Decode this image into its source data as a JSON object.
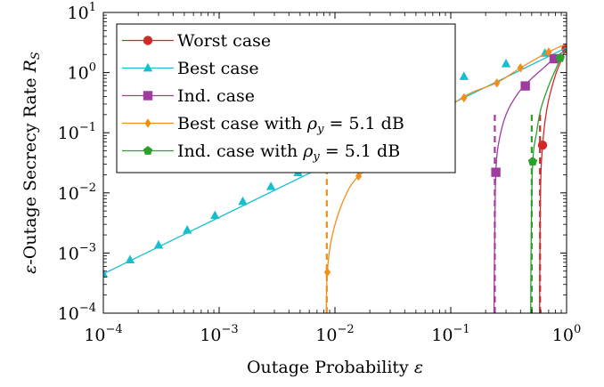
{
  "chart_data": {
    "type": "line",
    "x_scale": "log",
    "y_scale": "log",
    "xlim": [
      0.0001,
      1
    ],
    "ylim": [
      0.0001,
      10
    ],
    "xlabel": "Outage Probability ε",
    "ylabel": "ε-Outage Secrecy Rate R_S",
    "grid": false,
    "legend_position": "top-left",
    "x_ticks": [
      {
        "value": 0.0001,
        "base": "10",
        "exp": "−4"
      },
      {
        "value": 0.001,
        "base": "10",
        "exp": "−3"
      },
      {
        "value": 0.01,
        "base": "10",
        "exp": "−2"
      },
      {
        "value": 0.1,
        "base": "10",
        "exp": "−1"
      },
      {
        "value": 1,
        "base": "10",
        "exp": "0"
      }
    ],
    "y_ticks": [
      {
        "value": 0.0001,
        "base": "10",
        "exp": "−4"
      },
      {
        "value": 0.001,
        "base": "10",
        "exp": "−3"
      },
      {
        "value": 0.01,
        "base": "10",
        "exp": "−2"
      },
      {
        "value": 0.1,
        "base": "10",
        "exp": "−1"
      },
      {
        "value": 1,
        "base": "10",
        "exp": "0"
      },
      {
        "value": 10,
        "base": "10",
        "exp": "1"
      }
    ],
    "series": [
      {
        "name": "Worst case",
        "color": "#d62728",
        "marker": "circle",
        "line": [
          [
            0.585,
            0.0001
          ],
          [
            0.59,
            0.002
          ],
          [
            0.6,
            0.02
          ],
          [
            0.62,
            0.06
          ],
          [
            0.65,
            0.15
          ],
          [
            0.7,
            0.35
          ],
          [
            0.8,
            0.9
          ],
          [
            0.9,
            1.6
          ],
          [
            1.0,
            2.6
          ]
        ],
        "markers": [
          [
            0.62,
            0.062
          ],
          [
            0.99,
            2.5
          ]
        ],
        "asymptote": 0.59
      },
      {
        "name": "Best case",
        "color": "#17becf",
        "marker": "triangle",
        "line": [
          [
            0.0001,
            0.00045
          ],
          [
            1.0,
            2.6
          ]
        ],
        "markers": [
          [
            0.0001,
            0.00045
          ],
          [
            0.00017,
            0.00077
          ],
          [
            0.0003,
            0.00135
          ],
          [
            0.00053,
            0.0024
          ],
          [
            0.00092,
            0.0042
          ],
          [
            0.0016,
            0.0072
          ],
          [
            0.0028,
            0.0127
          ],
          [
            0.0048,
            0.0217
          ],
          [
            0.13,
            0.86
          ],
          [
            0.3,
            1.4
          ],
          [
            0.65,
            2.1
          ]
        ]
      },
      {
        "name": "Ind. case",
        "color": "#a03ba0",
        "marker": "square",
        "line": [
          [
            0.236,
            0.0001
          ],
          [
            0.24,
            0.0025
          ],
          [
            0.245,
            0.022
          ],
          [
            0.26,
            0.07
          ],
          [
            0.3,
            0.2
          ],
          [
            0.38,
            0.45
          ],
          [
            0.5,
            0.8
          ],
          [
            0.65,
            1.25
          ],
          [
            0.8,
            1.8
          ],
          [
            1.0,
            2.4
          ]
        ],
        "markers": [
          [
            0.245,
            0.022
          ],
          [
            0.44,
            0.6
          ],
          [
            0.78,
            1.7
          ]
        ],
        "asymptote": 0.24
      },
      {
        "name": "Best case with ρ_y = 5.1 dB",
        "color": "#f28e1c",
        "marker": "diamond",
        "line": [
          [
            0.0084,
            0.0001
          ],
          [
            0.0086,
            0.0005
          ],
          [
            0.0095,
            0.002
          ],
          [
            0.012,
            0.008
          ],
          [
            0.016,
            0.019
          ],
          [
            0.03,
            0.05
          ],
          [
            0.06,
            0.13
          ],
          [
            0.13,
            0.4
          ],
          [
            0.25,
            0.68
          ],
          [
            0.4,
            1.2
          ],
          [
            0.7,
            2.2
          ],
          [
            1.0,
            3.0
          ]
        ],
        "markers": [
          [
            0.0086,
            0.00048
          ],
          [
            0.016,
            0.019
          ],
          [
            0.13,
            0.38
          ],
          [
            0.25,
            0.67
          ],
          [
            0.4,
            1.2
          ],
          [
            0.7,
            2.2
          ]
        ],
        "asymptote": 0.0085
      },
      {
        "name": "Ind. case with ρ_y = 5.1 dB",
        "color": "#2ca02c",
        "marker": "pentagon",
        "line": [
          [
            0.49,
            0.0001
          ],
          [
            0.495,
            0.002
          ],
          [
            0.51,
            0.033
          ],
          [
            0.55,
            0.1
          ],
          [
            0.6,
            0.25
          ],
          [
            0.7,
            0.6
          ],
          [
            0.8,
            1.1
          ],
          [
            0.9,
            1.8
          ],
          [
            1.0,
            2.5
          ]
        ],
        "markers": [
          [
            0.51,
            0.033
          ],
          [
            0.88,
            1.75
          ]
        ],
        "asymptote": 0.5
      }
    ]
  },
  "legend": {
    "items": [
      {
        "label": "Worst case",
        "math": ""
      },
      {
        "label": "Best case",
        "math": ""
      },
      {
        "label": "Ind. case",
        "math": ""
      },
      {
        "label": "Best case with ",
        "math": "ρ",
        "sub": "y",
        "rest": " = 5.1 dB"
      },
      {
        "label": "Ind. case with ",
        "math": "ρ",
        "sub": "y",
        "rest": " = 5.1 dB"
      }
    ]
  },
  "axes_text": {
    "xlabel_main": "Outage Probability ",
    "xlabel_sym": "ε",
    "ylabel_sym": "ε",
    "ylabel_main": "-Outage Secrecy Rate ",
    "ylabel_R": "R",
    "ylabel_sub": "S"
  }
}
